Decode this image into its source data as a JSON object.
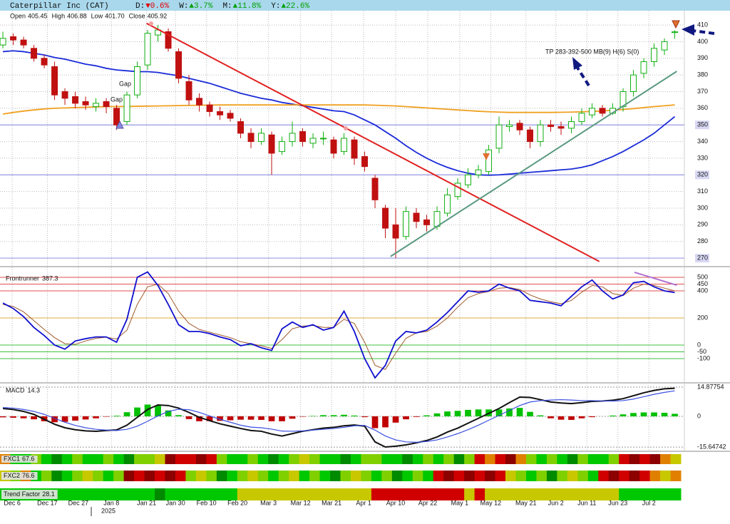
{
  "header": {
    "title": "Caterpillar Inc (CAT)",
    "changes": [
      {
        "label": "D:",
        "text": "▼0.6%",
        "color": "#e00000"
      },
      {
        "label": "W:",
        "text": "▲3.7%",
        "color": "#00a000"
      },
      {
        "label": "M:",
        "text": "▲11.8%",
        "color": "#00a000"
      },
      {
        "label": "Y:",
        "text": "▲22.6%",
        "color": "#00a000"
      }
    ]
  },
  "strip_palette": {
    "G": "#00c800",
    "D": "#008a00",
    "L": "#80d000",
    "Y": "#c8c800",
    "O": "#e08000",
    "R": "#d00000",
    "M": "#8c0000"
  },
  "chart_data": [
    {
      "type": "candlestick",
      "ohlc_labels": [
        "Open",
        "High",
        "Low",
        "Close"
      ],
      "ohlc_value_labels": [
        "405.45",
        "406.88",
        "401.70",
        "405.92"
      ],
      "candle_colors": {
        "up": "#10b010",
        "down": "#c01010"
      },
      "open": [
        398,
        403,
        401,
        396,
        390,
        385,
        370,
        367,
        364,
        361,
        364,
        360,
        352,
        368,
        386,
        404,
        406,
        394,
        376,
        366,
        362,
        358,
        357,
        352,
        345,
        340,
        344,
        334,
        340,
        346,
        339,
        342,
        341,
        334,
        341,
        331,
        318,
        300,
        290,
        283,
        297,
        293,
        289,
        297,
        307,
        314,
        320,
        322,
        336,
        349,
        351,
        347,
        340,
        350,
        349,
        348,
        352,
        356,
        360,
        357,
        361,
        370,
        381,
        388,
        395,
        405.45
      ],
      "high": [
        406,
        405,
        403,
        398,
        392,
        388,
        372,
        370,
        367,
        366,
        366,
        362,
        370,
        388,
        407,
        410,
        408,
        396,
        380,
        369,
        364,
        361,
        359,
        354,
        348,
        348,
        346,
        343,
        352,
        348,
        345,
        346,
        343,
        345,
        343,
        334,
        320,
        302,
        300,
        301,
        300,
        296,
        301,
        312,
        318,
        324,
        326,
        338,
        355,
        353,
        353,
        349,
        353,
        353,
        352,
        355,
        360,
        363,
        362,
        363,
        372,
        383,
        390,
        399,
        402,
        406.88
      ],
      "low": [
        396,
        398,
        396,
        388,
        384,
        365,
        362,
        360,
        359,
        358,
        357,
        347,
        350,
        366,
        383,
        400,
        394,
        375,
        362,
        358,
        355,
        353,
        352,
        342,
        336,
        338,
        320,
        332,
        337,
        337,
        336,
        338,
        330,
        332,
        326,
        322,
        300,
        282,
        270,
        281,
        288,
        286,
        287,
        295,
        305,
        312,
        318,
        320,
        333,
        346,
        344,
        336,
        337,
        346,
        344,
        345,
        350,
        354,
        355,
        356,
        358,
        367,
        378,
        385,
        392,
        401.7
      ],
      "close": [
        402,
        401,
        398,
        390,
        386,
        368,
        366,
        363,
        362,
        363,
        361,
        350,
        368,
        385,
        405,
        407,
        396,
        378,
        365,
        362,
        358,
        356,
        354,
        345,
        340,
        345,
        333,
        340,
        345,
        340,
        342,
        342,
        333,
        342,
        330,
        325,
        305,
        288,
        282,
        298,
        292,
        290,
        298,
        308,
        315,
        320,
        323,
        335,
        350,
        350,
        347,
        340,
        350,
        349,
        348,
        352,
        357,
        360,
        357,
        360,
        370,
        380,
        388,
        396,
        400,
        405.92
      ],
      "moving_averages": [
        {
          "color": "#1a2bd8",
          "values": [
            394,
            394.5,
            394,
            393,
            392,
            390.5,
            389.5,
            388,
            386.5,
            385.5,
            384,
            383,
            382.5,
            382,
            382,
            381.5,
            380.5,
            379.5,
            378,
            376.5,
            375,
            373,
            371,
            369,
            367.5,
            366,
            365,
            363.5,
            362.5,
            361.5,
            360.5,
            359.5,
            358.5,
            358,
            356,
            353,
            350,
            346,
            342,
            337.5,
            333.5,
            330,
            327,
            324.5,
            322.5,
            321,
            320,
            319.8,
            320,
            320.5,
            321,
            321.5,
            322,
            322.5,
            323,
            323.5,
            324.5,
            326,
            328.5,
            331,
            334,
            337.5,
            341,
            345,
            350,
            355
          ]
        },
        {
          "color": "#f0a020",
          "values": [
            356.5,
            357.5,
            358.3,
            359,
            359.6,
            360,
            360.2,
            360.4,
            360.6,
            360.8,
            361,
            361,
            361.1,
            361.2,
            361.3,
            361.4,
            361.5,
            361.6,
            361.7,
            361.8,
            361.9,
            362,
            362,
            362,
            362,
            362,
            362,
            362,
            362,
            362,
            362,
            362,
            362,
            362,
            362,
            362,
            361.8,
            361.6,
            361.4,
            361,
            360.6,
            360.2,
            359.8,
            359.4,
            359,
            358.6,
            358.2,
            357.9,
            357.7,
            357.5,
            357.5,
            357.5,
            357.5,
            357.5,
            357.6,
            357.7,
            357.9,
            358.1,
            358.4,
            358.8,
            359.3,
            359.8,
            360.4,
            361,
            361.5,
            362
          ]
        }
      ],
      "trendlines": [
        {
          "color": "#e02020",
          "x": [
            13.9,
            57.7
          ],
          "values": [
            411,
            268
          ]
        },
        {
          "color": "#5a9a80",
          "x": [
            37.5,
            65.2
          ],
          "values": [
            271,
            382.2
          ]
        }
      ],
      "hlines": [
        350,
        320,
        270
      ],
      "hline_color": "#9a9ae6",
      "annotations": [
        "Gap",
        "Gap",
        "TP 283-392-500 MB(9) H(6) S(0)"
      ],
      "xlim": [
        -0.28,
        65.93
      ],
      "xticks": [
        {
          "value": 0.9,
          "label": "Dec 6"
        },
        {
          "value": 4.3,
          "label": "Dec 17"
        },
        {
          "value": 7.3,
          "label": "Dec 27"
        },
        {
          "value": 10.5,
          "label": "Jan 8"
        },
        {
          "value": 13.9,
          "label": "Jan 21"
        },
        {
          "value": 16.7,
          "label": "Jan 30"
        },
        {
          "value": 19.7,
          "label": "Feb 10"
        },
        {
          "value": 22.7,
          "label": "Feb 20"
        },
        {
          "value": 25.7,
          "label": "Mar 3"
        },
        {
          "value": 28.8,
          "label": "Mar 12"
        },
        {
          "value": 31.8,
          "label": "Mar 21"
        },
        {
          "value": 34.9,
          "label": "Apr 1"
        },
        {
          "value": 38.0,
          "label": "Apr 10"
        },
        {
          "value": 41.1,
          "label": "Apr 22"
        },
        {
          "value": 44.2,
          "label": "May 1"
        },
        {
          "value": 47.2,
          "label": "May 12"
        },
        {
          "value": 50.6,
          "label": "May 21"
        },
        {
          "value": 53.5,
          "label": "Jun 2"
        },
        {
          "value": 56.5,
          "label": "Jun 11"
        },
        {
          "value": 59.5,
          "label": "Jun 23"
        },
        {
          "value": 62.5,
          "label": "Jul 2"
        }
      ],
      "year_marker": {
        "value": 8.55,
        "label": "2025"
      },
      "ylim": [
        266.6,
        418.6
      ],
      "yticks": [
        270,
        280,
        290,
        300,
        310,
        320,
        330,
        340,
        350,
        360,
        370,
        380,
        390,
        400,
        410
      ],
      "grid": true
    },
    {
      "type": "line",
      "series": [
        {
          "name": "Frontrunner",
          "color": "#1010d0",
          "values": [
            310,
            270,
            210,
            130,
            70,
            0,
            -30,
            30,
            47,
            60,
            60,
            21,
            190,
            500,
            540,
            440,
            300,
            150,
            100,
            100,
            85,
            60,
            40,
            -5,
            10,
            -20,
            -40,
            120,
            170,
            130,
            150,
            110,
            130,
            250,
            100,
            -100,
            -242,
            -150,
            30,
            100,
            90,
            110,
            170,
            240,
            320,
            400,
            390,
            400,
            450,
            420,
            400,
            330,
            320,
            310,
            290,
            360,
            430,
            480,
            400,
            340,
            370,
            460,
            470,
            430,
            400,
            387.3
          ]
        },
        {
          "color": "#a05a2c",
          "values": [
            300,
            285,
            245,
            180,
            115,
            55,
            10,
            5,
            30,
            50,
            58,
            45,
            110,
            300,
            430,
            450,
            380,
            250,
            160,
            115,
            95,
            75,
            55,
            25,
            10,
            -5,
            -25,
            40,
            120,
            140,
            145,
            130,
            130,
            190,
            160,
            20,
            -150,
            -180,
            -60,
            50,
            90,
            100,
            140,
            200,
            280,
            350,
            380,
            395,
            420,
            425,
            410,
            370,
            340,
            320,
            305,
            330,
            390,
            440,
            430,
            380,
            365,
            420,
            450,
            440,
            420,
            400
          ]
        }
      ],
      "trendlines": [
        {
          "color": "#b070d0",
          "x": [
            61.1,
            65.2
          ],
          "values": [
            537,
            442
          ]
        }
      ],
      "ylim": [
        -273.7,
        557.9
      ],
      "yticks": [
        500,
        450,
        400,
        200,
        0,
        -50,
        -100
      ],
      "level_colors": [
        "#e05050",
        "#e05050",
        "#e05050",
        "#e0a840",
        "#40c040",
        "#40c040",
        "#40c040"
      ]
    },
    {
      "type": "macd",
      "title": "MACD",
      "hist_colors": {
        "up": "#00c000",
        "down": "#c00000"
      },
      "histogram": [
        -0.5,
        -0.7,
        -1,
        -1.5,
        -2.5,
        -3,
        -2.8,
        -2.2,
        -1.6,
        -1,
        -0.2,
        0.3,
        2.1,
        4.5,
        6,
        5.6,
        3,
        0.6,
        -1.4,
        -2.5,
        -2.4,
        -2.3,
        -2,
        -1.7,
        -1.7,
        -1.8,
        -2.5,
        -2.5,
        -1.2,
        -0.2,
        0.2,
        0.6,
        0.6,
        0.8,
        0.4,
        -0.4,
        -6,
        -5.6,
        -3.2,
        -1.5,
        -0.3,
        0.5,
        1.5,
        2.5,
        2.8,
        3.3,
        3.5,
        3.5,
        3.5,
        4,
        4.3,
        2.3,
        0.5,
        -1,
        -1.7,
        -1.8,
        -1,
        -0.4,
        0,
        0.4,
        1,
        1.7,
        2,
        2,
        1.8,
        1.3
      ],
      "series": [
        {
          "color": "#111111",
          "values": [
            4,
            3.5,
            2.5,
            1,
            -1.5,
            -4,
            -5.8,
            -6.8,
            -7.4,
            -7.6,
            -7.2,
            -6.9,
            -4.5,
            -0.5,
            3.5,
            5.8,
            5.5,
            4.2,
            2,
            -0.5,
            -2.2,
            -3.8,
            -5,
            -6.2,
            -7.2,
            -7.6,
            -9,
            -10,
            -8.8,
            -7.6,
            -6.8,
            -6,
            -5.6,
            -4.8,
            -4.4,
            -5,
            -13,
            -15.6,
            -15.2,
            -14.5,
            -13.5,
            -12.3,
            -10.5,
            -8,
            -6,
            -3.5,
            -1,
            1.5,
            4,
            7,
            9.8,
            9.6,
            8.5,
            7.3,
            6.8,
            6.5,
            7,
            7.6,
            7.8,
            8.2,
            9,
            10.5,
            12,
            13.2,
            14,
            14.3
          ]
        },
        {
          "color": "#3a50e0",
          "values": [
            4.5,
            4.2,
            3.5,
            2.5,
            1,
            -1,
            -3,
            -4.6,
            -5.8,
            -6.6,
            -7,
            -7.2,
            -6.6,
            -5,
            -2.5,
            0.2,
            2.5,
            3.6,
            3.4,
            2,
            0.2,
            -1.5,
            -3,
            -4.5,
            -5.5,
            -5.8,
            -6.5,
            -7.5,
            -7.6,
            -7.4,
            -7,
            -6.6,
            -6.2,
            -5.6,
            -4.8,
            -4.6,
            -7,
            -10,
            -12,
            -13,
            -13.2,
            -12.8,
            -12,
            -10.5,
            -8.8,
            -6.8,
            -4.5,
            -2,
            0.5,
            3,
            5.5,
            7.3,
            8,
            8.3,
            8.5,
            8.3,
            8,
            8,
            7.8,
            7.8,
            8,
            8.8,
            10,
            11.2,
            12.2,
            13
          ]
        }
      ],
      "ylim": [
        -17.42,
        16.69
      ],
      "yticks": [
        -15.64742,
        0,
        14.87754
      ]
    },
    {
      "type": "heatstrip",
      "label": "FXC1",
      "value": 67.6,
      "colors": "OGGLGDGLGGLGDLLYMRRMRLGGLGDGLYLGGDGLLGGDGLGLDLRORMOLGLGDLGGLRMRMOY"
    },
    {
      "type": "heatstrip",
      "label": "FXC2",
      "value": 76.6,
      "colors": "YLOGLDGLYLGLMRMRMRLYLDGLYLGLYGLGDLYLGLDGLGRMRMRMRYLGLDLYLGRMRMROYO"
    },
    {
      "type": "heatstrip",
      "label": "Trend Factor",
      "value": 28.1,
      "colors": "GGGGGGGGGGGGGGGDGGGGGGGYYYYYYYYYYYYYRRRRRRRRRYRYYYYYYYYYYYYYGGGGGG"
    }
  ]
}
